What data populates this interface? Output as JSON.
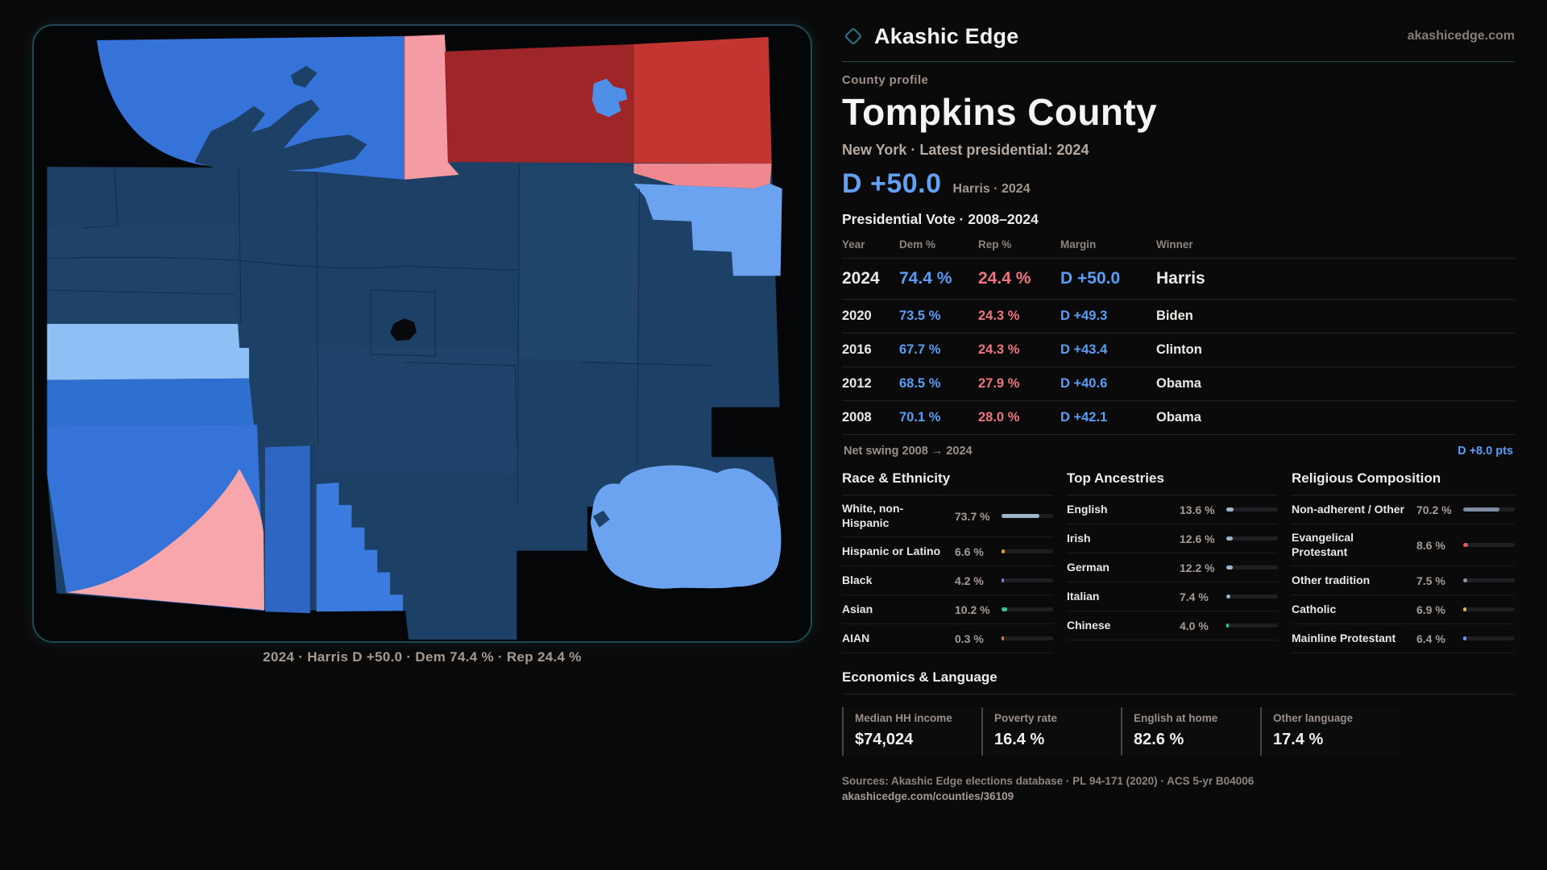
{
  "brand": {
    "name": "Akashic Edge",
    "domain": "akashicedge.com",
    "accent_teal": "#2e6f80"
  },
  "header": {
    "eyebrow": "County profile",
    "title": "Tompkins County",
    "subtitle": "New York  · Latest presidential: 2024"
  },
  "headline": {
    "margin": "D +50.0",
    "context": "Harris · 2024"
  },
  "vote_table": {
    "title": "Presidential Vote · 2008–2024",
    "columns": {
      "year": "Year",
      "dem": "Dem %",
      "rep": "Rep %",
      "margin": "Margin",
      "winner": "Winner"
    },
    "rows": [
      {
        "year": "2024",
        "dem": "74.4 %",
        "rep": "24.4 %",
        "margin": "D +50.0",
        "winner": "Harris"
      },
      {
        "year": "2020",
        "dem": "73.5 %",
        "rep": "24.3 %",
        "margin": "D +49.3",
        "winner": "Biden"
      },
      {
        "year": "2016",
        "dem": "67.7 %",
        "rep": "24.3 %",
        "margin": "D +43.4",
        "winner": "Clinton"
      },
      {
        "year": "2012",
        "dem": "68.5 %",
        "rep": "27.9 %",
        "margin": "D +40.6",
        "winner": "Obama"
      },
      {
        "year": "2008",
        "dem": "70.1 %",
        "rep": "28.0 %",
        "margin": "D +42.1",
        "winner": "Obama"
      }
    ],
    "net_swing_label": "Net swing 2008 → 2024",
    "net_swing_value": "D +8.0 pts",
    "dem_color": "#5b9df5",
    "rep_color": "#ee7580"
  },
  "demographics": [
    {
      "title": "Race & Ethnicity",
      "rows": [
        {
          "label": "White, non-Hispanic",
          "value": "73.7 %",
          "pct": 73.7,
          "color": "#9fb4c9"
        },
        {
          "label": "Hispanic or Latino",
          "value": "6.6 %",
          "pct": 6.6,
          "color": "#e59b2e"
        },
        {
          "label": "Black",
          "value": "4.2 %",
          "pct": 4.2,
          "color": "#8b6ff0"
        },
        {
          "label": "Asian",
          "value": "10.2 %",
          "pct": 10.2,
          "color": "#2fc98e"
        },
        {
          "label": "AIAN",
          "value": "0.3 %",
          "pct": 0.3,
          "color": "#e07b30"
        }
      ]
    },
    {
      "title": "Top Ancestries",
      "rows": [
        {
          "label": "English",
          "value": "13.6 %",
          "pct": 13.6,
          "color": "#9fb4c9"
        },
        {
          "label": "Irish",
          "value": "12.6 %",
          "pct": 12.6,
          "color": "#9fb4c9"
        },
        {
          "label": "German",
          "value": "12.2 %",
          "pct": 12.2,
          "color": "#9fb4c9"
        },
        {
          "label": "Italian",
          "value": "7.4 %",
          "pct": 7.4,
          "color": "#9fb4c9"
        },
        {
          "label": "Chinese",
          "value": "4.0 %",
          "pct": 4.0,
          "color": "#2fc98e"
        }
      ]
    },
    {
      "title": "Religious Composition",
      "rows": [
        {
          "label": "Non-adherent / Other",
          "value": "70.2 %",
          "pct": 70.2,
          "color": "#7e8ca3"
        },
        {
          "label": "Evangelical Protestant",
          "value": "8.6 %",
          "pct": 8.6,
          "color": "#e0575e"
        },
        {
          "label": "Other tradition",
          "value": "7.5 %",
          "pct": 7.5,
          "color": "#8a93a0"
        },
        {
          "label": "Catholic",
          "value": "6.9 %",
          "pct": 6.9,
          "color": "#e6b33c"
        },
        {
          "label": "Mainline Protestant",
          "value": "6.4 %",
          "pct": 6.4,
          "color": "#5b9cf5"
        }
      ]
    }
  ],
  "economics": {
    "title": "Economics & Language",
    "stats": [
      {
        "label": "Median HH income",
        "value": "$74,024"
      },
      {
        "label": "Poverty rate",
        "value": "16.4 %"
      },
      {
        "label": "English at home",
        "value": "82.6 %"
      },
      {
        "label": "Other language",
        "value": "17.4 %"
      }
    ]
  },
  "footer": {
    "sources": "Sources: Akashic Edge elections database · PL 94-171 (2020) · ACS 5-yr B04006",
    "permalink": "akashicedge.com/counties/36109"
  },
  "map": {
    "caption": "2024 · Harris D +50.0 · Dem 74.4 % · Rep 24.4 %",
    "palette": {
      "dem_strong": "#1d4066",
      "dem_medium": "#3573d8",
      "dem_light": "#6ba3f0",
      "dem_pale": "#8fc0f5",
      "rep_strong": "#9e2629",
      "rep_medium": "#c23531",
      "rep_light": "#f49ba3",
      "rep_pale": "#f7a6ab",
      "border_teal": "#1d4a52"
    }
  }
}
